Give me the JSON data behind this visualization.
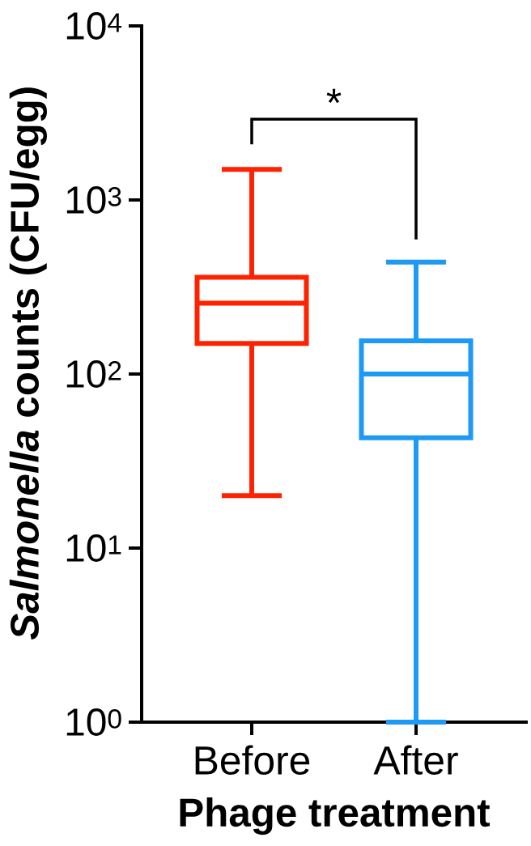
{
  "chart_data": {
    "type": "box",
    "categories": [
      "Before",
      "After"
    ],
    "boxes": [
      {
        "low": 20,
        "q1": 150,
        "median": 255,
        "q3": 360,
        "high": 1500
      },
      {
        "low": 1,
        "q1": 43,
        "median": 100,
        "q3": 155,
        "high": 440
      }
    ],
    "colors": [
      "#ff2200",
      "#1e9af5"
    ],
    "xlabel": "Phage treatment",
    "ylabel": "*Salmonella* counts (CFU/egg)",
    "log": true,
    "ylim": [
      1,
      10000
    ],
    "yticks": [
      {
        "value": 1,
        "label": "10$^{0}$"
      },
      {
        "value": 10,
        "label": "10$^{1}$"
      },
      {
        "value": 100,
        "label": "10$^{2}$"
      },
      {
        "value": 1000,
        "label": "10$^{3}$"
      },
      {
        "value": 10000,
        "label": "10$^{4}$"
      }
    ],
    "annotations": [
      "*"
    ]
  }
}
